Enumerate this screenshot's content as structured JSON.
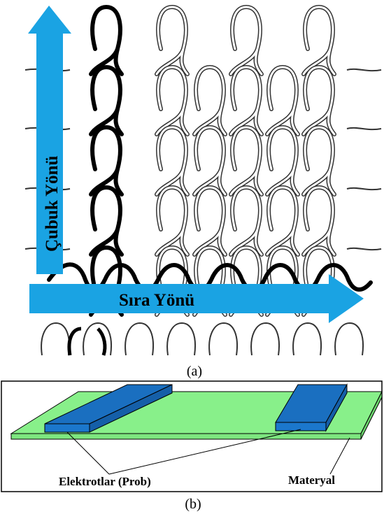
{
  "panel_a": {
    "wale_label": "Çubuk Yönü",
    "course_label": "Sıra Yönü",
    "caption": "(a)",
    "arrow_color": "#1aa3e3"
  },
  "panel_b": {
    "electrodes_label": "Elektrotlar (Prob)",
    "material_label": "Materyal",
    "caption": "(b)",
    "material_color": "#88f08a",
    "electrode_color": "#1a6fc0"
  }
}
